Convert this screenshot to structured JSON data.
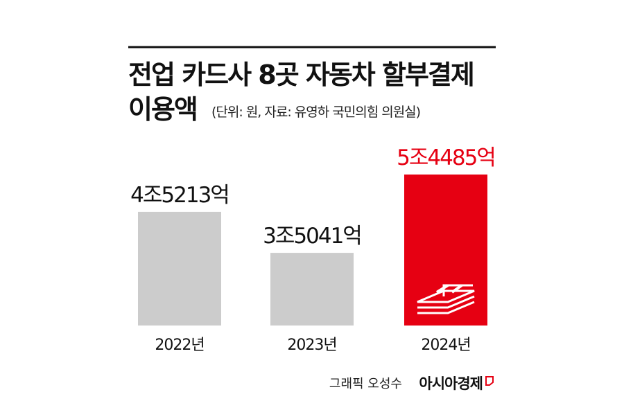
{
  "chart_data": {
    "type": "bar",
    "title_lines": [
      "전업 카드사 8곳 자동차 할부결제",
      "이용액"
    ],
    "subtitle": "(단위: 원, 자료: 유영하 국민의힘 의원실)",
    "categories": [
      "2022년",
      "2023년",
      "2024년"
    ],
    "values": [
      45213,
      35041,
      54485
    ],
    "value_labels": [
      "4조5213억",
      "3조5041억",
      "5조4485억"
    ],
    "colors": [
      "#cccccc",
      "#cccccc",
      "#e60012"
    ],
    "label_colors": [
      "#111111",
      "#111111",
      "#e60012"
    ],
    "ylim": [
      17000,
      55000
    ],
    "credit": "그래픽 오성수",
    "publisher": "아시아경제"
  }
}
